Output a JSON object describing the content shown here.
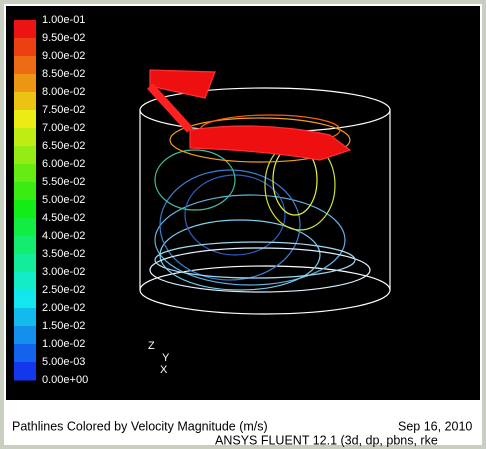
{
  "colorbar": {
    "labels": [
      "1.00e-01",
      "9.50e-02",
      "9.00e-02",
      "8.50e-02",
      "8.00e-02",
      "7.50e-02",
      "7.00e-02",
      "6.50e-02",
      "6.00e-02",
      "5.50e-02",
      "5.00e-02",
      "4.50e-02",
      "4.00e-02",
      "3.50e-02",
      "3.00e-02",
      "2.50e-02",
      "2.00e-02",
      "1.50e-02",
      "1.00e-02",
      "5.00e-03",
      "0.00e+00"
    ]
  },
  "axes": {
    "z": "Z",
    "y": "Y",
    "x": "X"
  },
  "footer": {
    "title": "Pathlines Colored by Velocity Magnitude (m/s)",
    "date": "Sep 16, 2010",
    "software": "ANSYS FLUENT 12.1 (3d, dp, pbns, rke"
  }
}
